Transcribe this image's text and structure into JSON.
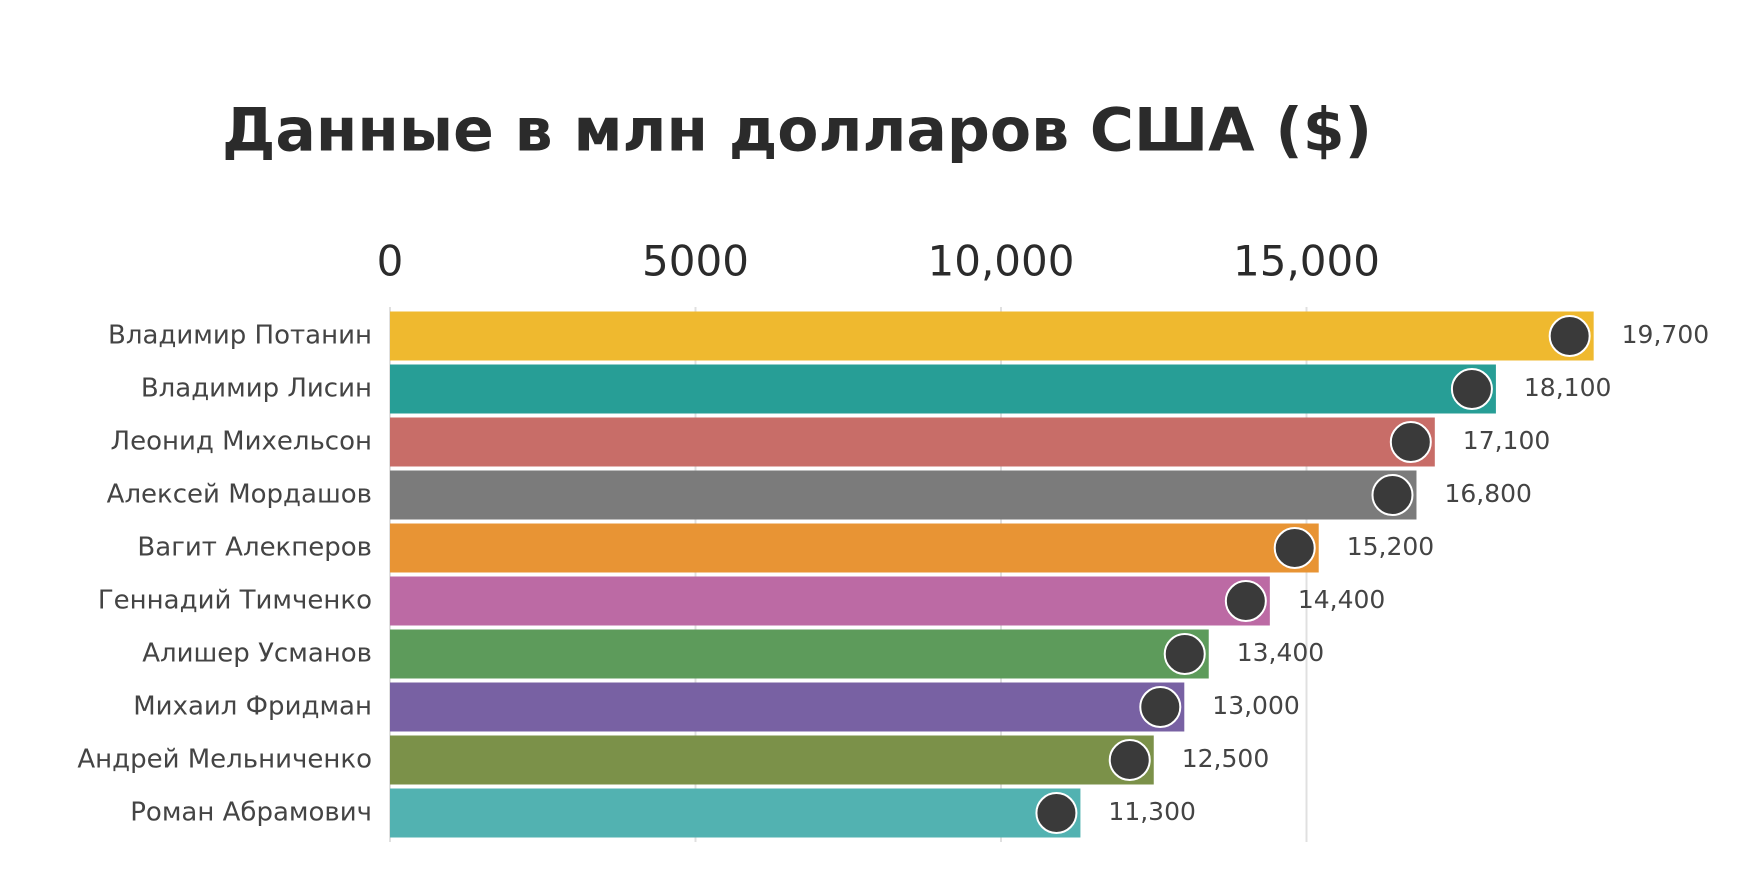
{
  "chart_data": {
    "type": "bar",
    "orientation": "horizontal",
    "title": "Данные в млн долларов США ($)",
    "categories": [
      "Владимир Потанин",
      "Владимир Лисин",
      "Леонид Михельсон",
      "Алексей Мордашов",
      "Вагит Алекперов",
      "Геннадий Тимченко",
      "Алишер Усманов",
      "Михаил Фридман",
      "Андрей Мельниченко",
      "Роман Абрамович"
    ],
    "values": [
      19700,
      18100,
      17100,
      16800,
      15200,
      14400,
      13400,
      13000,
      12500,
      11300
    ],
    "value_labels": [
      "19,700",
      "18,100",
      "17,100",
      "16,800",
      "15,200",
      "14,400",
      "13,400",
      "13,000",
      "12,500",
      "11,300"
    ],
    "colors": [
      "#efb92f",
      "#279e96",
      "#c86d68",
      "#7b7b7b",
      "#e89434",
      "#bc6aa4",
      "#5d9b5b",
      "#7861a3",
      "#7b9149",
      "#52b2b1"
    ],
    "xlim": [
      0,
      20000
    ],
    "xticks": [
      0,
      5000,
      {
        "value": 10000,
        "label": "10,000"
      },
      {
        "value": 15000,
        "label": "15,000"
      }
    ],
    "grid": true
  }
}
